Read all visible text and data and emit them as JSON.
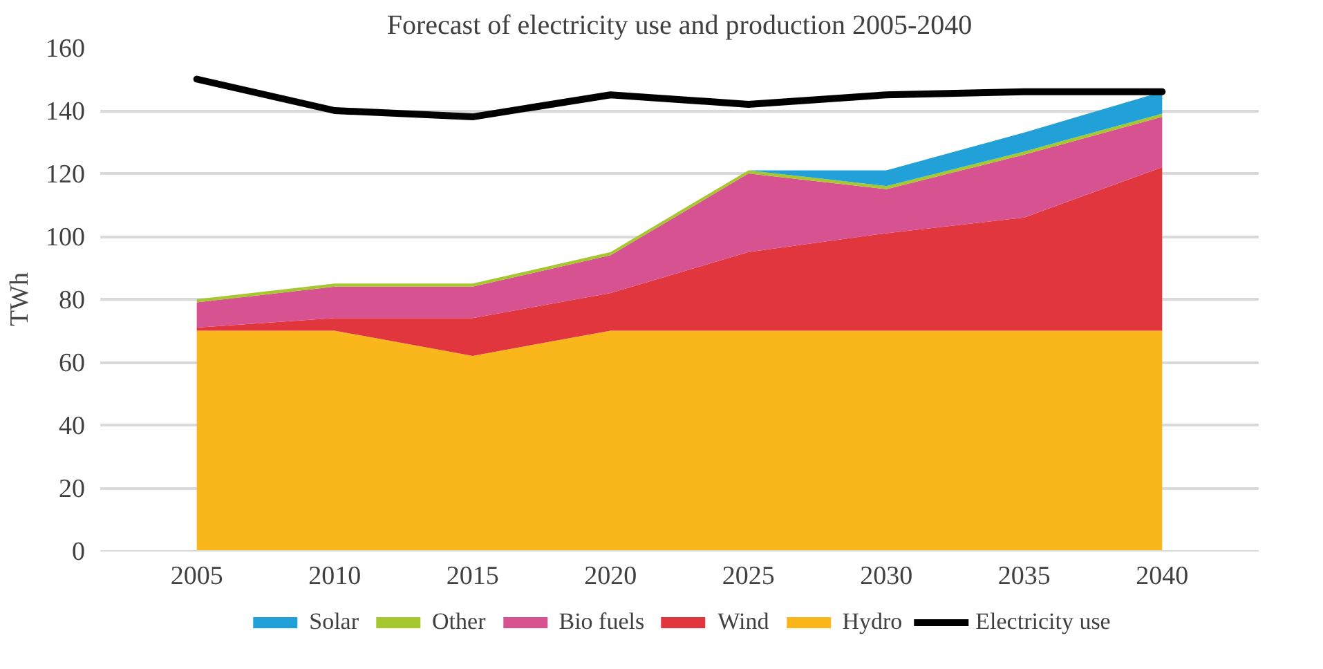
{
  "chart_data": {
    "type": "area",
    "stacked": true,
    "title": "Forecast of electricity use and production 2005-2040",
    "ylabel": "TWh",
    "x": [
      2005,
      2010,
      2015,
      2020,
      2025,
      2030,
      2035,
      2040
    ],
    "xlim": [
      2001.5,
      2043.5
    ],
    "xticks": [
      2005,
      2010,
      2015,
      2020,
      2025,
      2030,
      2035,
      2040
    ],
    "ylim": [
      0,
      160
    ],
    "yticks": [
      0,
      20,
      40,
      60,
      80,
      100,
      120,
      140,
      160
    ],
    "grid": "y",
    "legend": "bottom",
    "series": [
      {
        "name": "Hydro",
        "color": "#f9b71c",
        "values": [
          70,
          70,
          62,
          70,
          70,
          70,
          70,
          70
        ]
      },
      {
        "name": "Wind",
        "color": "#e2363f",
        "values": [
          1,
          4,
          12,
          12,
          25,
          31,
          36,
          52
        ]
      },
      {
        "name": "Bio fuels",
        "color": "#d75291",
        "values": [
          8,
          10,
          10,
          12,
          25,
          14,
          20,
          16
        ]
      },
      {
        "name": "Other",
        "color": "#a6c82e",
        "values": [
          1,
          1,
          1,
          1,
          1,
          1,
          1,
          1
        ]
      },
      {
        "name": "Solar",
        "color": "#22a0d8",
        "values": [
          0,
          0,
          0,
          0,
          0,
          5,
          6,
          7
        ]
      },
      {
        "name": "Electricity use",
        "color": "#000000",
        "type": "line",
        "values": [
          150,
          140,
          138,
          145,
          142,
          145,
          146,
          146
        ]
      }
    ]
  }
}
